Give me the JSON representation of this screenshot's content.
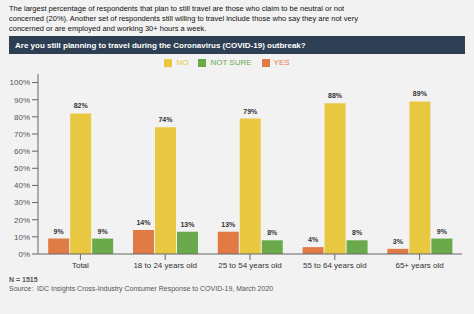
{
  "chart_data": {
    "type": "bar",
    "title": "Are you still planning to travel during the Coronavirus (COVID-19) outbreak?",
    "subtitle": "The largest percentage of respondents that plan to still travel are those who claim to be neutral or not\nconcerned (20%). Another set of respondents still willing to travel include those who say they are not very\nconcerned or are employed and working 30+ hours a week.",
    "annotations": [
      "N = 1515",
      "Source:  IDC Insights Cross-Industry Consumer Response to COVID-19, March 2020"
    ],
    "categories": [
      "Total",
      "18 to 24 years old",
      "25 to 54 years old",
      "55 to 64 years old",
      "65+ years old"
    ],
    "series": [
      {
        "name": "YES",
        "color": "#e07b45",
        "values": [
          9,
          14,
          13,
          4,
          3
        ],
        "value_labels": [
          "9%",
          "14%",
          "13%",
          "4%",
          "3%"
        ]
      },
      {
        "name": "NO",
        "color": "#e8c840",
        "values": [
          82,
          74,
          79,
          88,
          89
        ],
        "value_labels": [
          "82%",
          "74%",
          "79%",
          "88%",
          "89%"
        ]
      },
      {
        "name": "NOT SURE",
        "color": "#6aaa4a",
        "values": [
          9,
          13,
          8,
          8,
          9
        ],
        "value_labels": [
          "9%",
          "13%",
          "8%",
          "8%",
          "9%"
        ]
      }
    ],
    "ylim": [
      0,
      105
    ],
    "yticks": [
      {
        "value": 0,
        "label": "0%"
      },
      {
        "value": 10,
        "label": "10%"
      },
      {
        "value": 20,
        "label": "20%"
      },
      {
        "value": 30,
        "label": "30%"
      },
      {
        "value": 40,
        "label": "40%"
      },
      {
        "value": 50,
        "label": "50%"
      },
      {
        "value": 60,
        "label": "60%"
      },
      {
        "value": 70,
        "label": "70%"
      },
      {
        "value": 80,
        "label": "80%"
      },
      {
        "value": 90,
        "label": "90%"
      },
      {
        "value": 100,
        "label": "100%"
      }
    ],
    "grid": false,
    "legend": "top",
    "data_labels": true
  }
}
